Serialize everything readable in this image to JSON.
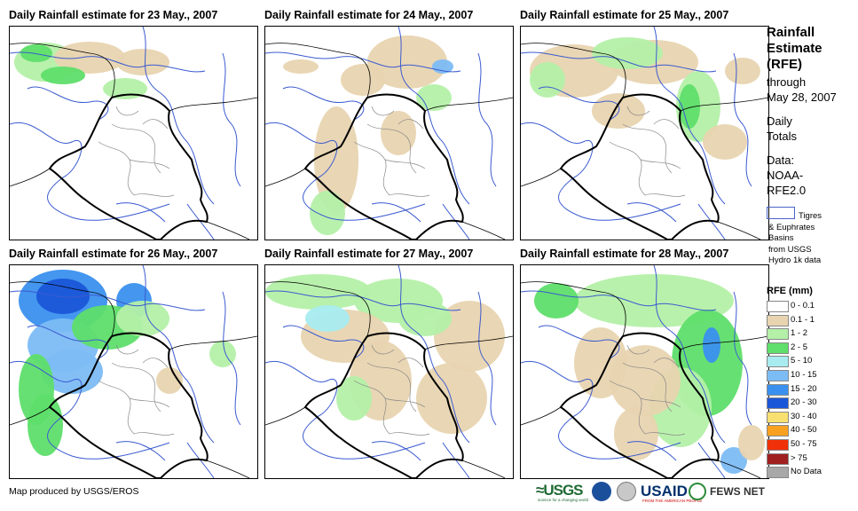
{
  "panels": [
    {
      "title": "Daily Rainfall estimate for 23 May., 2007"
    },
    {
      "title": "Daily Rainfall estimate for 24 May., 2007"
    },
    {
      "title": "Daily Rainfall estimate for 25 May., 2007"
    },
    {
      "title": "Daily Rainfall estimate for 26 May., 2007"
    },
    {
      "title": "Daily Rainfall estimate for 27 May., 2007"
    },
    {
      "title": "Daily Rainfall estimate for 28 May., 2007"
    }
  ],
  "sidebar": {
    "title_line1": "Rainfall",
    "title_line2": "Estimate",
    "title_line3": "(RFE)",
    "through": "through",
    "through_date": "May 28, 2007",
    "daily_line1": "Daily",
    "daily_line2": "Totals",
    "data_line1": "Data:",
    "data_line2": "NOAA-",
    "data_line3": "RFE2.0",
    "basin_line1": "Tigres",
    "basin_line2": "& Euphrates",
    "basin_line3": "Basins",
    "basin_line4": "from USGS",
    "basin_line5": "Hydro 1k data"
  },
  "legend": {
    "title": "RFE (mm)",
    "items": [
      {
        "label": "0 - 0.1",
        "color": "#ffffff"
      },
      {
        "label": "0.1 - 1",
        "color": "#e8d4b0"
      },
      {
        "label": "1 - 2",
        "color": "#b4f0a8"
      },
      {
        "label": "2 - 5",
        "color": "#5ede6a"
      },
      {
        "label": "5 - 10",
        "color": "#a8ecf0"
      },
      {
        "label": "10 - 15",
        "color": "#7cbcf4"
      },
      {
        "label": "15 - 20",
        "color": "#3a90ee"
      },
      {
        "label": "20 - 30",
        "color": "#1a56d8"
      },
      {
        "label": "30 - 40",
        "color": "#f8e070"
      },
      {
        "label": "40 - 50",
        "color": "#f8a020"
      },
      {
        "label": "50 - 75",
        "color": "#f03008"
      },
      {
        "label": "> 75",
        "color": "#a02020"
      },
      {
        "label": "No Data",
        "color": "#a8a8a8"
      }
    ]
  },
  "footer": {
    "credit": "Map produced by USGS/EROS"
  },
  "logos": {
    "usgs": "≈USGS",
    "usgs_sub": "science for a changing world",
    "usaid": "USAID",
    "usaid_sub": "FROM THE AMERICAN PEOPLE",
    "fews": "FEWS NET"
  }
}
